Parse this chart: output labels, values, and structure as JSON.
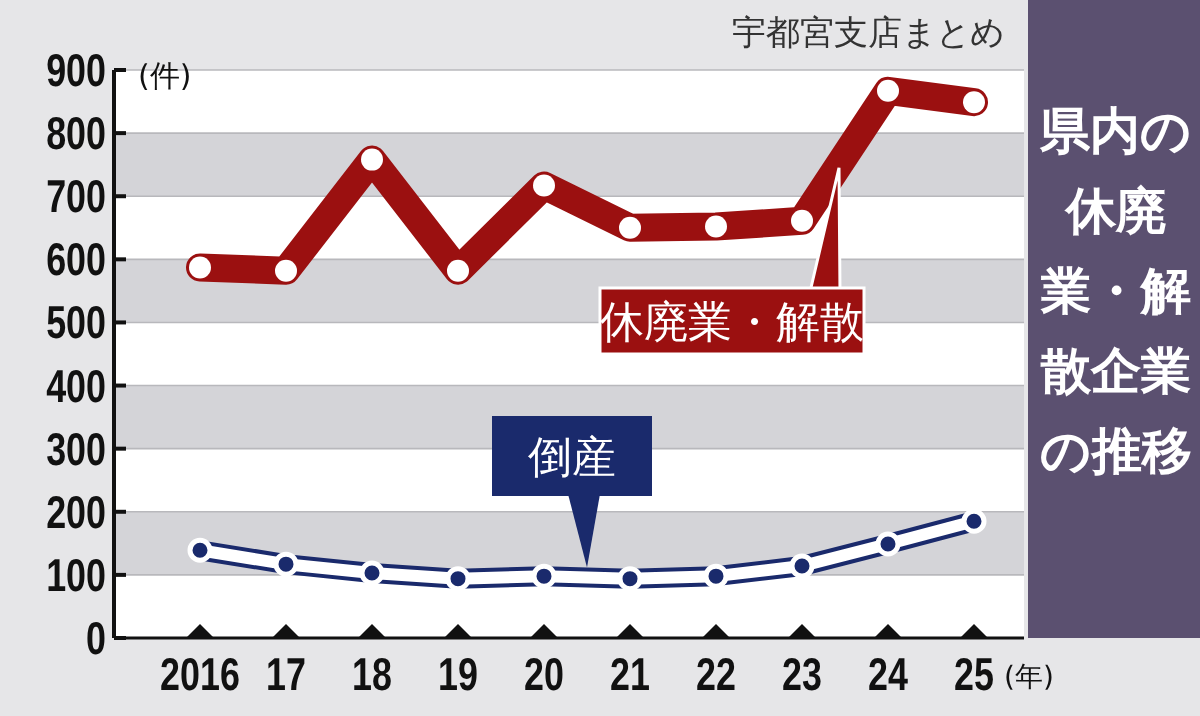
{
  "chart_data": {
    "type": "line",
    "title": "県内の休廃業・解散企業の推移",
    "annotations": [
      "宇都宮支店まとめ"
    ],
    "ylabel": "(件)",
    "xlabel": "(年)",
    "categories": [
      "2016",
      "17",
      "18",
      "19",
      "20",
      "21",
      "22",
      "23",
      "24",
      "25"
    ],
    "series": [
      {
        "name": "休廃業・解散",
        "color": "#9b1010",
        "values": [
          587,
          582,
          758,
          582,
          717,
          650,
          652,
          661,
          867,
          849
        ]
      },
      {
        "name": "倒産",
        "color": "#1a2a6c",
        "values": [
          139,
          117,
          103,
          94,
          98,
          94,
          98,
          114,
          149,
          185
        ]
      }
    ],
    "ylim": [
      0,
      900
    ],
    "yticks": [
      0,
      100,
      200,
      300,
      400,
      500,
      600,
      700,
      800,
      900
    ],
    "grid": "y",
    "marker": "circle",
    "line_style": "solid",
    "legend": false
  }
}
